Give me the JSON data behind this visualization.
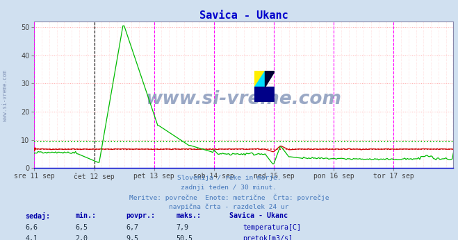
{
  "title": "Savica - Ukanc",
  "title_color": "#0000cc",
  "bg_color": "#d0e0f0",
  "plot_bg_color": "#ffffff",
  "grid_color_h": "#ffaaaa",
  "grid_color_v": "#ffcccc",
  "ylim": [
    0,
    52
  ],
  "yticks": [
    0,
    10,
    20,
    30,
    40,
    50
  ],
  "xlim": [
    0,
    336
  ],
  "n_points": 337,
  "temp_avg": 6.7,
  "flow_avg": 9.5,
  "temp_color": "#cc0000",
  "flow_color": "#00bb00",
  "vline_color": "#ff00ff",
  "vline_color2": "#000000",
  "day_labels": [
    "sre 11 sep",
    "čet 12 sep",
    "pet 13 sep",
    "sob 14 sep",
    "ned 15 sep",
    "pon 16 sep",
    "tor 17 sep"
  ],
  "day_positions": [
    0,
    48,
    96,
    144,
    192,
    240,
    288
  ],
  "end_x": 336,
  "subtitle_lines": [
    "Slovenija / reke in morje.",
    "zadnji teden / 30 minut.",
    "Meritve: povrečne  Enote: metrične  Črta: povrečje",
    "navpična črta - razdelek 24 ur"
  ],
  "subtitle_color": "#4477bb",
  "watermark": "www.si-vreme.com",
  "watermark_color": "#8899bb",
  "left_label": "www.si-vreme.com",
  "table_header": [
    "sedaj:",
    "min.:",
    "povpr.:",
    "maks.:",
    "Savica - Ukanc"
  ],
  "table_color": "#0000aa",
  "table_data_color": "#223344",
  "row1_vals": [
    "6,6",
    "6,5",
    "6,7",
    "7,9"
  ],
  "row2_vals": [
    "4,1",
    "2,0",
    "9,5",
    "50,5"
  ],
  "row1_label": "temperatura[C]",
  "row2_label": "pretok[m3/s]"
}
